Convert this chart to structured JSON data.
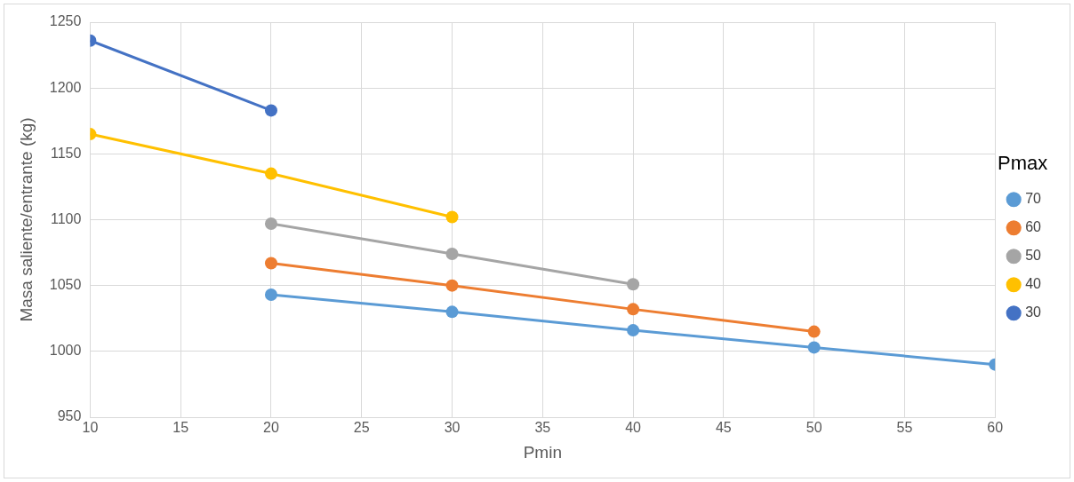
{
  "chart_data": {
    "type": "line",
    "xlabel": "Pmin",
    "ylabel": "Masa saliente/entrante (kg)",
    "legend_title": "Pmax",
    "legend": "right",
    "grid": true,
    "marker": "circle",
    "line_style": "solid",
    "xlim": [
      10,
      60
    ],
    "xticks": [
      10,
      15,
      20,
      25,
      30,
      35,
      40,
      45,
      50,
      55,
      60
    ],
    "ylim": [
      950,
      1250
    ],
    "yticks": [
      950,
      1000,
      1050,
      1100,
      1150,
      1200,
      1250
    ],
    "series": [
      {
        "name": "70",
        "color": "#5b9bd5",
        "x": [
          20,
          30,
          40,
          50,
          60
        ],
        "values": [
          1043,
          1030,
          1016,
          1003,
          990
        ]
      },
      {
        "name": "60",
        "color": "#ed7d31",
        "x": [
          20,
          30,
          40,
          50
        ],
        "values": [
          1067,
          1050,
          1032,
          1015
        ]
      },
      {
        "name": "50",
        "color": "#a5a5a5",
        "x": [
          20,
          30,
          40
        ],
        "values": [
          1097,
          1074,
          1051
        ]
      },
      {
        "name": "40",
        "color": "#ffc000",
        "x": [
          10,
          20,
          30
        ],
        "values": [
          1165,
          1135,
          1102
        ]
      },
      {
        "name": "30",
        "color": "#4472c4",
        "x": [
          10,
          20
        ],
        "values": [
          1236,
          1183
        ]
      }
    ]
  }
}
